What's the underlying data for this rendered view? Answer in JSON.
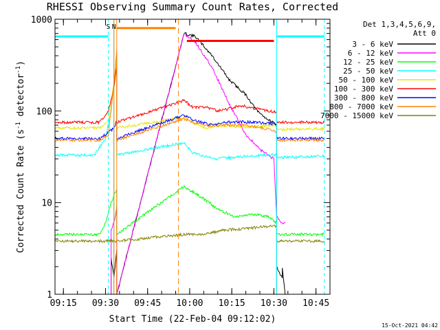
{
  "chart_data": {
    "type": "line",
    "title": "RHESSI Observing Summary Count Rates, Corrected",
    "xlabel": "Start Time (22-Feb-04 09:12:02)",
    "ylabel": "Corrected Count Rate (s-1 detector-1)",
    "ylabel_main": "Corrected Count Rate (s",
    "ylabel_sup1": "-1",
    "ylabel_mid": " detector",
    "ylabel_sup2": "-1",
    "ylabel_end": ")",
    "yscale": "log",
    "xlim": [
      "09:12",
      "10:50"
    ],
    "ylim": [
      1,
      1000
    ],
    "x_ticks": [
      "09:15",
      "09:30",
      "09:45",
      "10:00",
      "10:15",
      "10:30",
      "10:45"
    ],
    "x_tick_minutes": [
      555,
      570,
      585,
      600,
      615,
      630,
      645
    ],
    "y_ticks": [
      1,
      10,
      100,
      1000
    ],
    "y_tick_labels": [
      "1",
      "10",
      "100",
      "1000"
    ],
    "x_minor_step_min": 5,
    "legend_header": [
      "Det 1,3,4,5,6,9,",
      "Att 0"
    ],
    "legend_placement": "top-right outside",
    "series": [
      {
        "name": "3 - 6 keV",
        "color": "#000000",
        "points": [
          [
            "09:32",
            1
          ],
          [
            "09:32",
            2.5
          ],
          [
            "09:33",
            1.5
          ],
          [
            "09:34",
            3
          ],
          [
            "09:34",
            1
          ],
          [
            "09:58",
            700
          ],
          [
            "10:02",
            650
          ],
          [
            "10:08",
            400
          ],
          [
            "10:14",
            220
          ],
          [
            "10:20",
            150
          ],
          [
            "10:24",
            100
          ],
          [
            "10:28",
            80
          ],
          [
            "10:31",
            70
          ],
          [
            "10:31",
            1
          ],
          [
            "10:31",
            2
          ],
          [
            "10:33",
            1.5
          ],
          [
            "10:33",
            2
          ],
          [
            "10:34",
            1
          ]
        ]
      },
      {
        "name": "6 - 12 keV",
        "color": "#ff00ff",
        "points": [
          [
            "09:32",
            1
          ],
          [
            "09:32",
            5
          ],
          [
            "09:33",
            6
          ],
          [
            "09:34",
            9
          ],
          [
            "09:34",
            1
          ],
          [
            "09:58",
            700
          ],
          [
            "10:02",
            560
          ],
          [
            "10:08",
            300
          ],
          [
            "10:14",
            120
          ],
          [
            "10:20",
            55
          ],
          [
            "10:25",
            38
          ],
          [
            "10:30",
            30
          ],
          [
            "10:31",
            7
          ],
          [
            "10:33",
            6
          ],
          [
            "10:34",
            6
          ]
        ]
      },
      {
        "name": "12 - 25 keV",
        "color": "#00ff00",
        "points": [
          [
            "09:12",
            4.5
          ],
          [
            "09:28",
            4.5
          ],
          [
            "09:30",
            6
          ],
          [
            "09:32",
            10
          ],
          [
            "09:34",
            14
          ],
          [
            "09:34",
            4.5
          ],
          [
            "09:58",
            15
          ],
          [
            "10:05",
            11
          ],
          [
            "10:10",
            8.5
          ],
          [
            "10:16",
            7
          ],
          [
            "10:22",
            7.5
          ],
          [
            "10:28",
            7
          ],
          [
            "10:31",
            6
          ],
          [
            "10:31",
            4.5
          ],
          [
            "10:48",
            4.5
          ]
        ]
      },
      {
        "name": "25 - 50 keV",
        "color": "#00ffff",
        "points": [
          [
            "09:12",
            33
          ],
          [
            "09:26",
            33
          ],
          [
            "09:30",
            50
          ],
          [
            "09:32",
            100
          ],
          [
            "09:34",
            400
          ],
          [
            "09:34",
            33
          ],
          [
            "09:58",
            45
          ],
          [
            "10:01",
            35
          ],
          [
            "10:05",
            32
          ],
          [
            "10:10",
            30
          ],
          [
            "10:15",
            31
          ],
          [
            "10:20",
            32
          ],
          [
            "10:26",
            33
          ],
          [
            "10:31",
            33
          ],
          [
            "10:31",
            31
          ],
          [
            "10:48",
            32
          ]
        ]
      },
      {
        "name": "50 - 100 keV",
        "color": "#e6e600",
        "points": [
          [
            "09:12",
            65
          ],
          [
            "09:28",
            65
          ],
          [
            "09:31",
            80
          ],
          [
            "09:33",
            200
          ],
          [
            "09:34",
            350
          ],
          [
            "09:34",
            65
          ],
          [
            "09:58",
            85
          ],
          [
            "10:02",
            72
          ],
          [
            "10:06",
            65
          ],
          [
            "10:10",
            70
          ],
          [
            "10:15",
            68
          ],
          [
            "10:20",
            66
          ],
          [
            "10:26",
            68
          ],
          [
            "10:31",
            70
          ],
          [
            "10:31",
            63
          ],
          [
            "10:48",
            64
          ]
        ]
      },
      {
        "name": "100 - 300 keV",
        "color": "#ff0000",
        "points": [
          [
            "09:12",
            75
          ],
          [
            "09:28",
            75
          ],
          [
            "09:31",
            100
          ],
          [
            "09:33",
            180
          ],
          [
            "09:34",
            300
          ],
          [
            "09:34",
            75
          ],
          [
            "09:58",
            130
          ],
          [
            "10:01",
            110
          ],
          [
            "10:06",
            110
          ],
          [
            "10:10",
            100
          ],
          [
            "10:14",
            105
          ],
          [
            "10:18",
            115
          ],
          [
            "10:24",
            105
          ],
          [
            "10:28",
            100
          ],
          [
            "10:31",
            98
          ],
          [
            "10:31",
            75
          ],
          [
            "10:48",
            75
          ]
        ]
      },
      {
        "name": "300 - 800 keV",
        "color": "#0000ff",
        "points": [
          [
            "09:12",
            50
          ],
          [
            "09:28",
            50
          ],
          [
            "09:31",
            58
          ],
          [
            "09:33",
            65
          ],
          [
            "09:34",
            80
          ],
          [
            "09:34",
            50
          ],
          [
            "09:58",
            90
          ],
          [
            "10:02",
            78
          ],
          [
            "10:08",
            70
          ],
          [
            "10:12",
            75
          ],
          [
            "10:18",
            76
          ],
          [
            "10:24",
            75
          ],
          [
            "10:31",
            72
          ],
          [
            "10:31",
            50
          ],
          [
            "10:48",
            50
          ]
        ]
      },
      {
        "name": "800 - 7000 keV",
        "color": "#ff8000",
        "points": [
          [
            "09:12",
            48
          ],
          [
            "09:28",
            48
          ],
          [
            "09:31",
            55
          ],
          [
            "09:33",
            200
          ],
          [
            "09:34",
            450
          ],
          [
            "09:34",
            48
          ],
          [
            "09:58",
            82
          ],
          [
            "10:03",
            72
          ],
          [
            "10:08",
            68
          ],
          [
            "10:13",
            70
          ],
          [
            "10:20",
            70
          ],
          [
            "10:26",
            65
          ],
          [
            "10:31",
            60
          ],
          [
            "10:31",
            48
          ],
          [
            "10:48",
            48
          ]
        ]
      },
      {
        "name": "7000 - 15000 keV",
        "color": "#808000",
        "points": [
          [
            "09:12",
            3.8
          ],
          [
            "09:34",
            3.8
          ],
          [
            "09:58",
            4.5
          ],
          [
            "10:05",
            4.5
          ],
          [
            "10:12",
            5
          ],
          [
            "10:20",
            5.2
          ],
          [
            "10:28",
            5.5
          ],
          [
            "10:31",
            5.5
          ],
          [
            "10:31",
            3.8
          ],
          [
            "10:48",
            3.8
          ]
        ]
      }
    ],
    "annotations": {
      "cyan_vlines": [
        "09:31",
        "09:33",
        "10:31",
        "10:48"
      ],
      "cyan_dashed": [
        "09:31",
        "10:48"
      ],
      "orange_vlines": [
        "09:33",
        "09:34"
      ],
      "orange_dashed": [
        "09:56"
      ],
      "markers": [
        {
          "label": "S",
          "x": "09:31"
        },
        {
          "label": "N",
          "x": "09:33"
        }
      ],
      "cyan_level_segments": [
        [
          "09:12",
          "09:31",
          650
        ],
        [
          "10:31",
          "10:48",
          650
        ]
      ],
      "orange_level_segments": [
        [
          "09:34",
          "09:55",
          800
        ]
      ],
      "red_level_segments": [
        [
          "09:59",
          "10:30",
          580
        ]
      ]
    },
    "footer_date": "15-Oct-2021 04:42"
  }
}
